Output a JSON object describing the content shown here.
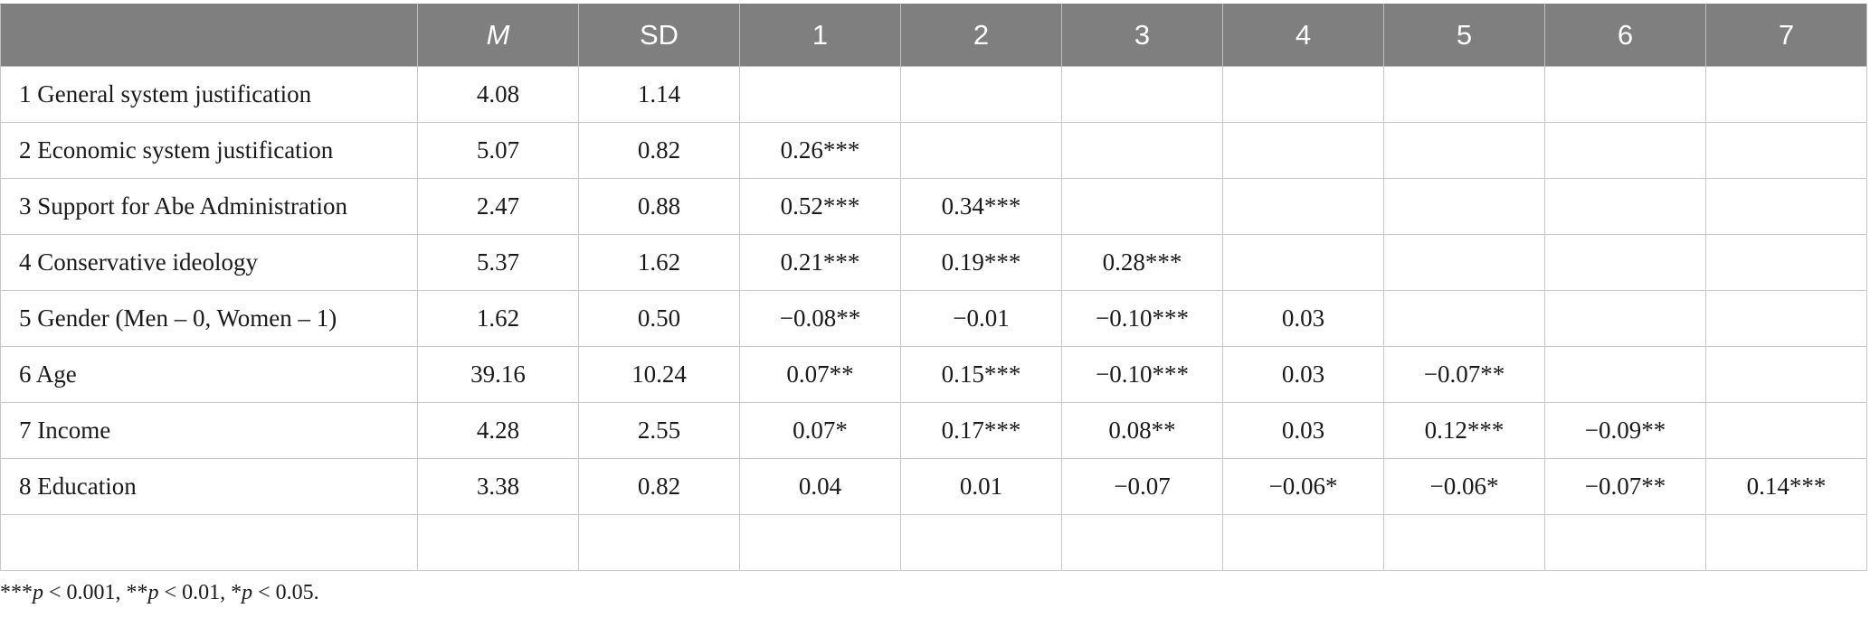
{
  "header": {
    "blank": "",
    "mean": "M",
    "sd": "SD",
    "cols": [
      "1",
      "2",
      "3",
      "4",
      "5",
      "6",
      "7"
    ]
  },
  "rows": [
    {
      "label": "1 General system justification",
      "m": "4.08",
      "sd": "1.14",
      "vals": [
        "",
        "",
        "",
        "",
        "",
        "",
        ""
      ]
    },
    {
      "label": "2 Economic system justification",
      "m": "5.07",
      "sd": "0.82",
      "vals": [
        "0.26***",
        "",
        "",
        "",
        "",
        "",
        ""
      ]
    },
    {
      "label": "3 Support for Abe Administration",
      "m": "2.47",
      "sd": "0.88",
      "vals": [
        "0.52***",
        "0.34***",
        "",
        "",
        "",
        "",
        ""
      ]
    },
    {
      "label": "4 Conservative ideology",
      "m": "5.37",
      "sd": "1.62",
      "vals": [
        "0.21***",
        "0.19***",
        "0.28***",
        "",
        "",
        "",
        ""
      ]
    },
    {
      "label": "5 Gender (Men – 0, Women – 1)",
      "m": "1.62",
      "sd": "0.50",
      "vals": [
        "−0.08**",
        "−0.01",
        "−0.10***",
        "0.03",
        "",
        "",
        ""
      ]
    },
    {
      "label": "6 Age",
      "m": "39.16",
      "sd": "10.24",
      "vals": [
        "0.07**",
        "0.15***",
        "−0.10***",
        "0.03",
        "−0.07**",
        "",
        ""
      ]
    },
    {
      "label": "7 Income",
      "m": "4.28",
      "sd": "2.55",
      "vals": [
        "0.07*",
        "0.17***",
        "0.08**",
        "0.03",
        "0.12***",
        "−0.09**",
        ""
      ]
    },
    {
      "label": "8 Education",
      "m": "3.38",
      "sd": "0.82",
      "vals": [
        "0.04",
        "0.01",
        "−0.07",
        "−0.06*",
        "−0.06*",
        "−0.07**",
        "0.14***"
      ]
    },
    {
      "label": "",
      "m": "",
      "sd": "",
      "vals": [
        "",
        "",
        "",
        "",
        "",
        "",
        ""
      ]
    }
  ],
  "footnote": {
    "s1": "***",
    "p1": "p",
    "t1": " < 0.001, **",
    "p2": "p",
    "t2": " < 0.01, *",
    "p3": "p",
    "t3": " < 0.05."
  }
}
